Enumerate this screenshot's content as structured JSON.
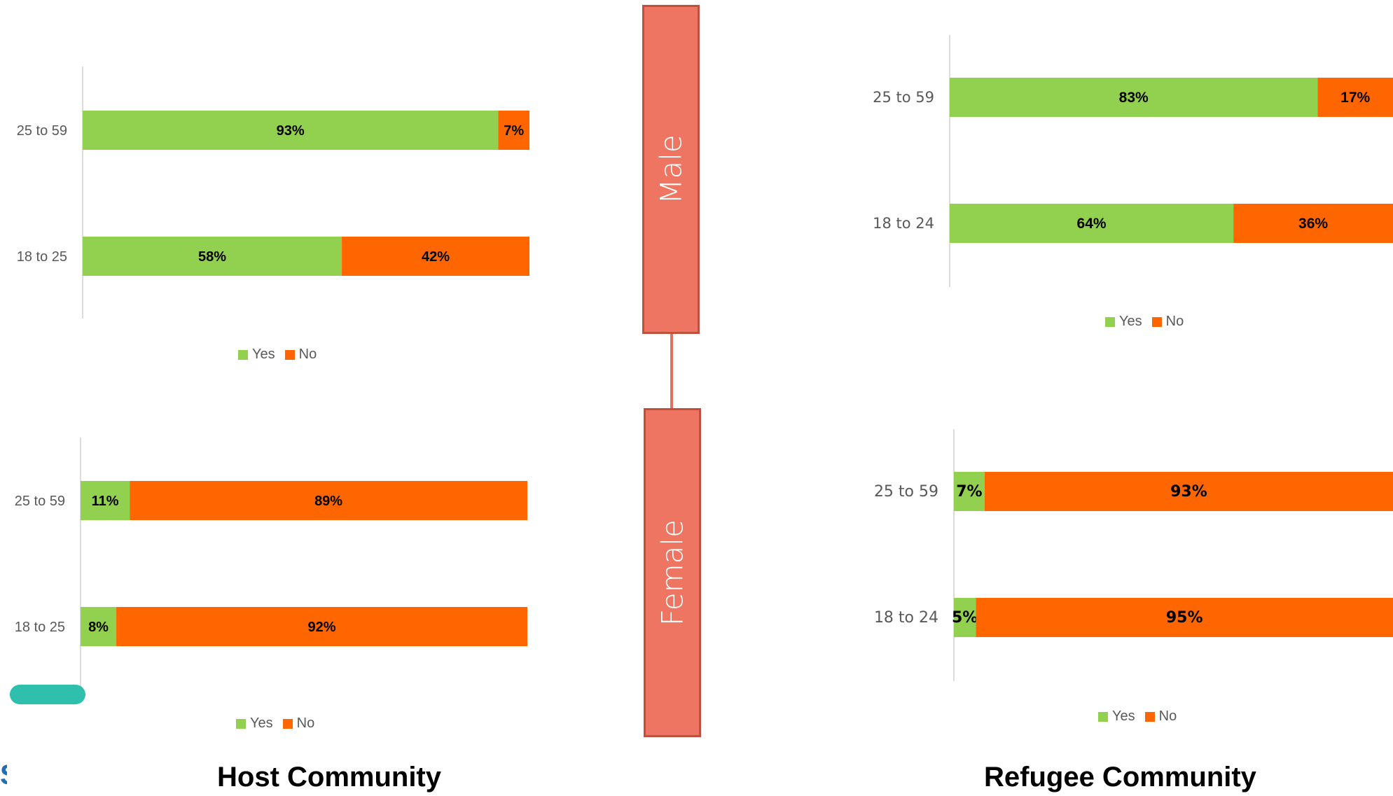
{
  "colors": {
    "yes": "#92d050",
    "no": "#ff6600",
    "gender_box": "#ee7561",
    "axis": "#d0d0d0"
  },
  "gender": {
    "male": "Male",
    "female": "Female"
  },
  "footer": {
    "host": "Host Community",
    "refugee": "Refugee Community",
    "corner": "S"
  },
  "legend": {
    "yes": "Yes",
    "no": "No"
  },
  "chart_data": [
    {
      "type": "bar",
      "orientation": "horizontal",
      "stacked": "100%",
      "categories": [
        "25 to 59",
        "18 to 25"
      ],
      "series": [
        {
          "name": "Yes",
          "values": [
            93,
            58
          ],
          "labels": [
            "93%",
            "58%"
          ]
        },
        {
          "name": "No",
          "values": [
            7,
            42
          ],
          "labels": [
            "7%",
            "42%"
          ]
        }
      ],
      "legend_position": "bottom"
    },
    {
      "type": "bar",
      "orientation": "horizontal",
      "stacked": "100%",
      "categories": [
        "25 to 59",
        "18 to 25"
      ],
      "series": [
        {
          "name": "Yes",
          "values": [
            11,
            8
          ],
          "labels": [
            "11%",
            "8%"
          ]
        },
        {
          "name": "No",
          "values": [
            89,
            92
          ],
          "labels": [
            "89%",
            "92%"
          ]
        }
      ],
      "legend_position": "bottom"
    },
    {
      "type": "bar",
      "orientation": "horizontal",
      "stacked": "100%",
      "categories": [
        "25 to 59",
        "18 to 24"
      ],
      "series": [
        {
          "name": "Yes",
          "values": [
            83,
            64
          ],
          "labels": [
            "83%",
            "64%"
          ]
        },
        {
          "name": "No",
          "values": [
            17,
            36
          ],
          "labels": [
            "17%",
            "36%"
          ]
        }
      ],
      "legend_position": "bottom"
    },
    {
      "type": "bar",
      "orientation": "horizontal",
      "stacked": "100%",
      "categories": [
        "25 to 59",
        "18 to 24"
      ],
      "series": [
        {
          "name": "Yes",
          "values": [
            7,
            5
          ],
          "labels": [
            "7%",
            "5%"
          ]
        },
        {
          "name": "No",
          "values": [
            93,
            95
          ],
          "labels": [
            "93%",
            "95%"
          ]
        }
      ],
      "legend_position": "bottom"
    }
  ]
}
